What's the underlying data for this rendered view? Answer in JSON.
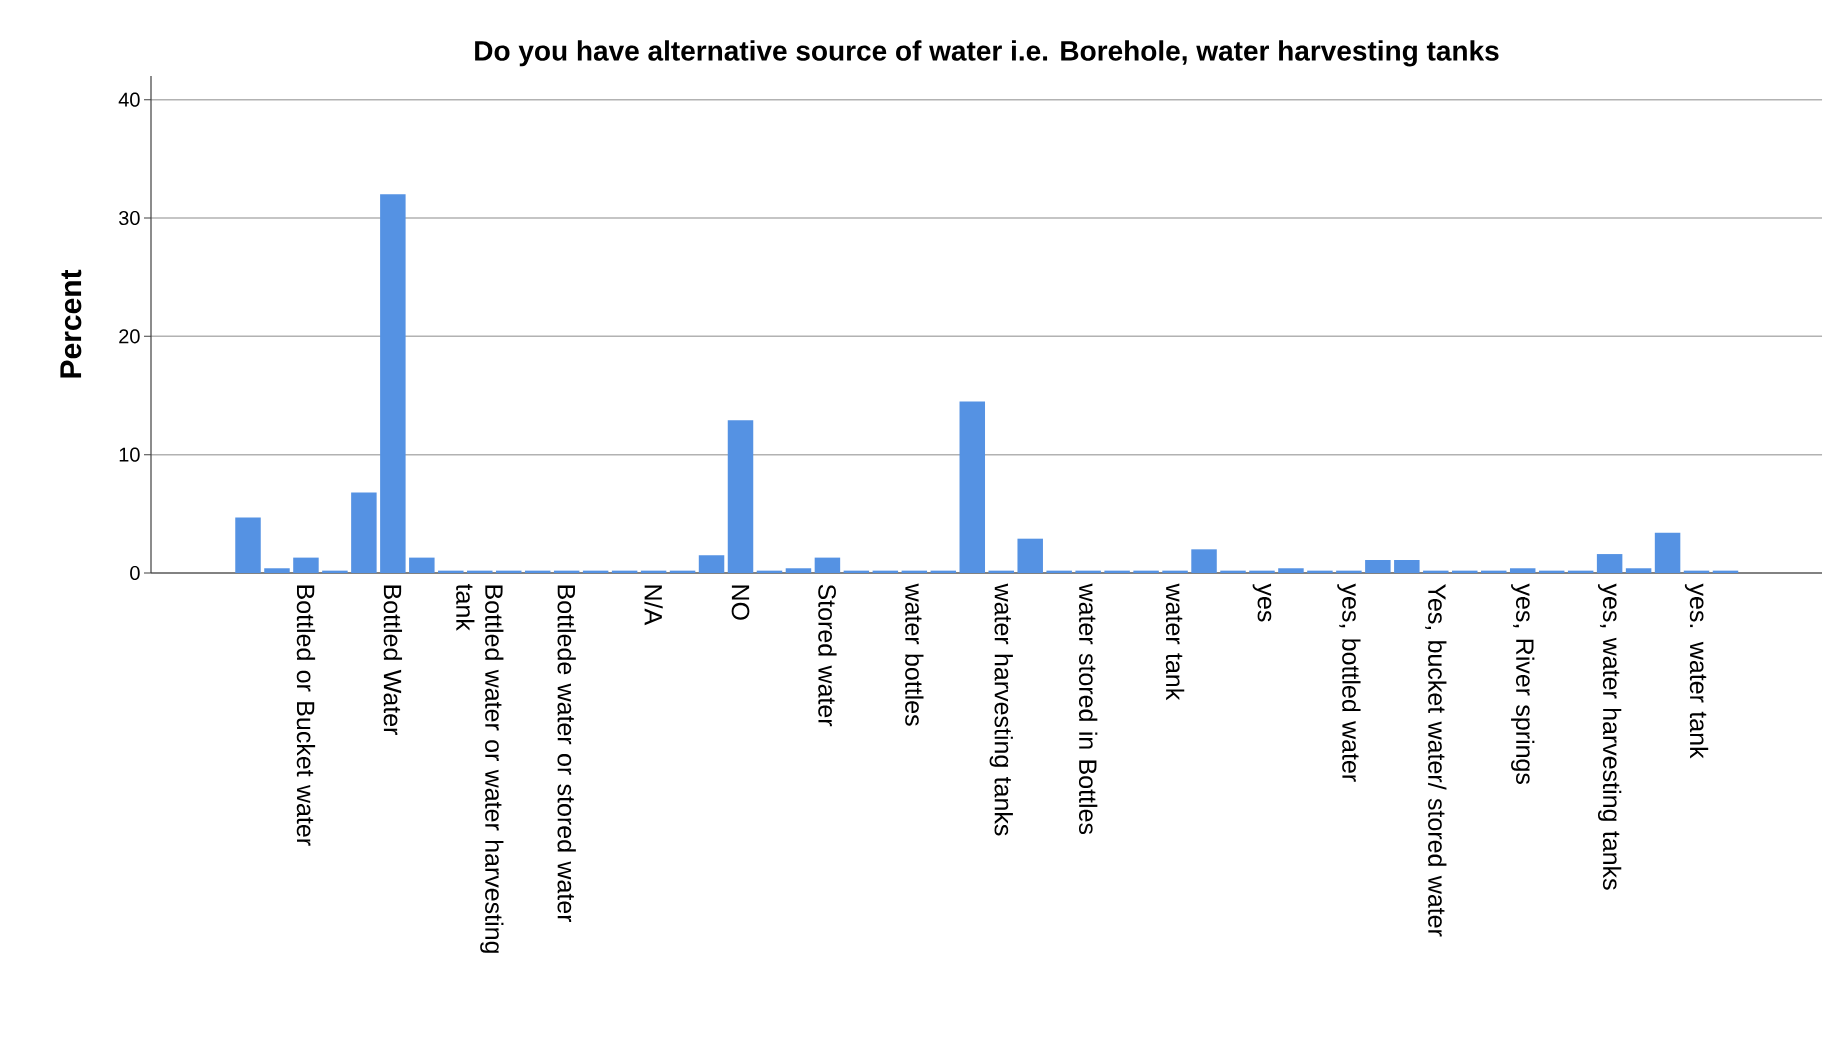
{
  "chart_data": {
    "type": "bar",
    "title": "Do you have alternative source of water i.e. Borehole, water harvesting tanks",
    "ylabel": "Percent",
    "categories": [
      null,
      null,
      "Bottled or Bucket water",
      null,
      null,
      "Bottled Water",
      null,
      null,
      "Bottled water or water harvesting tank",
      null,
      null,
      "Bottlede water or stored water",
      null,
      null,
      "N/A",
      null,
      null,
      "NO",
      null,
      null,
      "Stored water",
      null,
      null,
      "water bottles",
      null,
      null,
      "water harvesting tanks",
      null,
      null,
      "water stored in Bottles",
      null,
      null,
      "water tank",
      null,
      null,
      "yes",
      null,
      null,
      "yes, bottled water",
      null,
      null,
      "Yes, bucket water/ stored water",
      null,
      null,
      "yes, River springs",
      null,
      null,
      "yes, water harvesting tanks",
      null,
      null,
      "yes. water tank",
      null
    ],
    "values": [
      4.7,
      0.4,
      1.3,
      0.2,
      6.8,
      32.0,
      1.3,
      0.2,
      0.2,
      0.2,
      0.2,
      0.2,
      0.2,
      0.2,
      0.2,
      0.2,
      1.5,
      12.9,
      0.2,
      0.4,
      1.3,
      0.2,
      0.2,
      0.2,
      0.2,
      14.5,
      0.2,
      2.9,
      0.2,
      0.2,
      0.2,
      0.2,
      0.2,
      2.0,
      0.2,
      0.2,
      0.4,
      0.2,
      0.2,
      1.1,
      1.1,
      0.2,
      0.2,
      0.2,
      0.4,
      0.2,
      0.2,
      1.6,
      0.4,
      3.4,
      0.2,
      0.2
    ],
    "color": "#5592e3",
    "ylim": [
      0,
      42
    ],
    "yticks": [
      0,
      10,
      20,
      30,
      40
    ],
    "grid": "y"
  }
}
